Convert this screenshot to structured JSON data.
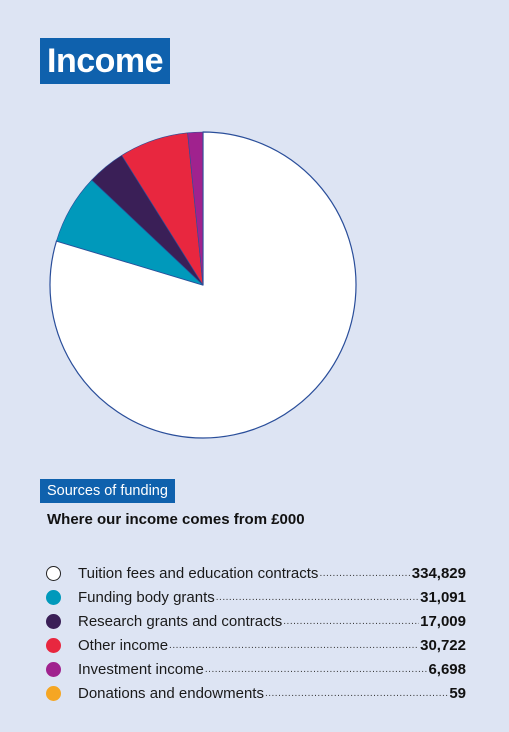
{
  "title": "Income",
  "section_label": "Sources of funding",
  "subtitle": "Where our income comes from £000",
  "chart_data": {
    "type": "pie",
    "title": "Income",
    "categories": [
      "Tuition fees and education contracts",
      "Funding body grants",
      "Research grants and contracts",
      "Other income",
      "Investment income",
      "Donations and endowments"
    ],
    "values": [
      334829,
      31091,
      17009,
      30722,
      6698,
      59
    ],
    "value_labels": [
      "334,829",
      "31,091",
      "17,009",
      "30,722",
      "6,698",
      "59"
    ],
    "colors": [
      "#ffffff",
      "#0099bb",
      "#3a1f57",
      "#e8273f",
      "#a0228e",
      "#f5a623"
    ],
    "legend_position": "bottom"
  }
}
